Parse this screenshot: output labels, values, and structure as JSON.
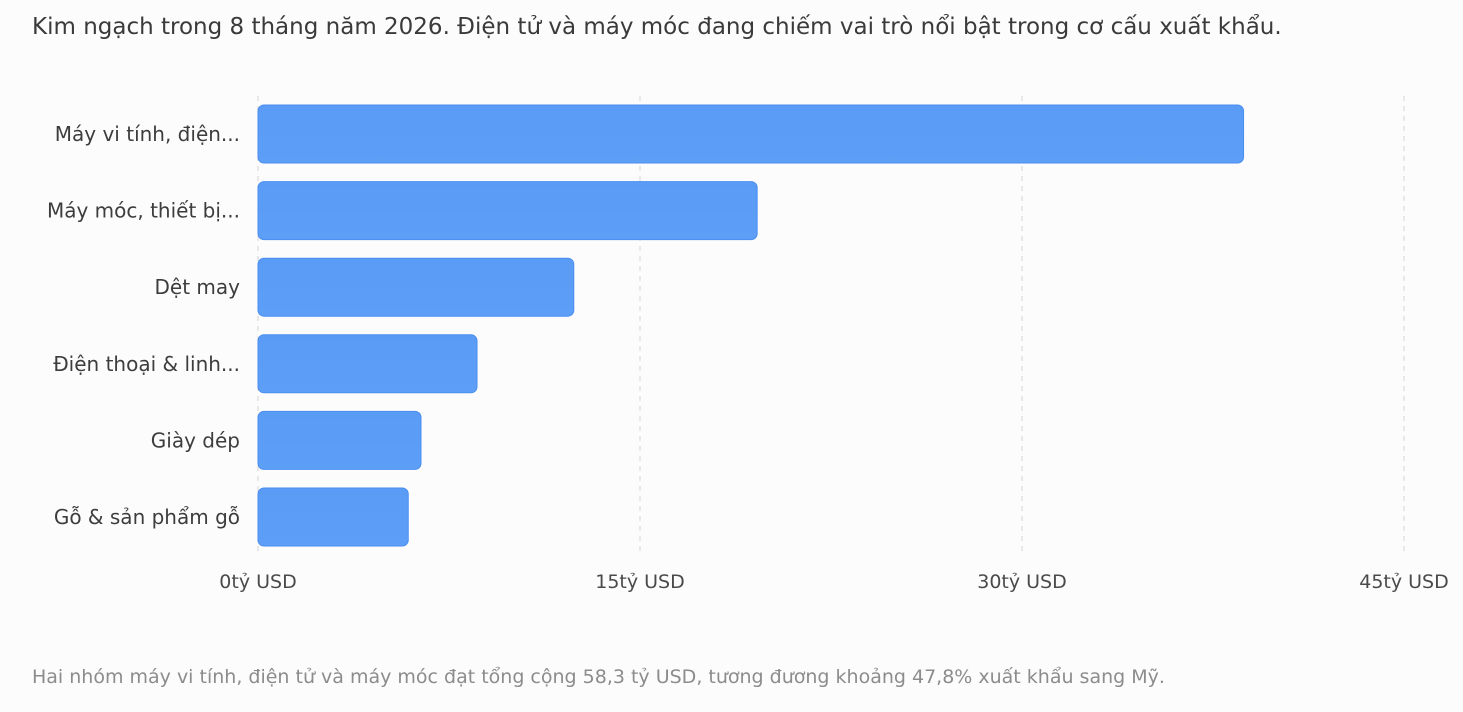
{
  "header": {
    "title": "Kim ngạch trong 8 tháng năm 2026. Điện tử và máy móc đang chiếm vai trò nổi bật trong cơ cấu xuất khẩu."
  },
  "footer": {
    "note": "Hai nhóm máy vi tính, điện tử và máy móc đạt tổng cộng 58,3 tỷ USD, tương đương khoảng 47,8% xuất khẩu sang Mỹ."
  },
  "chart_data": {
    "type": "bar",
    "orientation": "horizontal",
    "categories": [
      "Máy vi tính, điện...",
      "Máy móc, thiết bị...",
      "Dệt may",
      "Điện thoại & linh...",
      "Giày dép",
      "Gỗ & sản phẩm gỗ"
    ],
    "values": [
      38.7,
      19.6,
      12.4,
      8.6,
      6.4,
      5.9
    ],
    "xlim": [
      0,
      45
    ],
    "ticks": [
      0,
      15,
      30,
      45
    ],
    "tick_labels": [
      "0tỷ USD",
      "15tỷ USD",
      "30tỷ USD",
      "45tỷ USD"
    ],
    "grid": true,
    "bar_color": "#5b9df7",
    "bar_edge_color": "#4a8ef0",
    "grid_color": "#dcdcdc"
  }
}
